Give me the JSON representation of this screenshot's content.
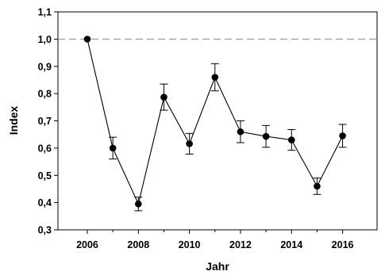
{
  "chart_data": {
    "type": "line",
    "title": "",
    "xlabel": "Jahr",
    "ylabel": "Index",
    "xlim": [
      2004.85,
      2017.35
    ],
    "ylim": [
      0.3,
      1.1
    ],
    "x_ticks": [
      2006,
      2008,
      2010,
      2012,
      2014,
      2016
    ],
    "x_tick_labels": [
      "2006",
      "2008",
      "2010",
      "2012",
      "2014",
      "2016"
    ],
    "y_ticks": [
      0.3,
      0.4,
      0.5,
      0.6,
      0.7,
      0.8,
      0.9,
      1.0,
      1.1
    ],
    "y_tick_labels": [
      "0,3",
      "0,4",
      "0,5",
      "0,6",
      "0,7",
      "0,8",
      "0,9",
      "1,0",
      "1,1"
    ],
    "reference_line": {
      "y": 1.0,
      "style": "dashed",
      "color": "#a0a0a0"
    },
    "grid": false,
    "legend": "none",
    "colors": {
      "line": "#000000",
      "marker": "#000000",
      "error_bar": "#000000"
    },
    "series": [
      {
        "x": [
          2006,
          2007,
          2008,
          2009,
          2010,
          2011,
          2012,
          2013,
          2014,
          2015,
          2016
        ],
        "values": [
          1.0,
          0.6,
          0.395,
          0.787,
          0.616,
          0.86,
          0.66,
          0.643,
          0.63,
          0.46,
          0.645
        ],
        "error": [
          0.0,
          0.04,
          0.025,
          0.048,
          0.038,
          0.05,
          0.04,
          0.04,
          0.038,
          0.03,
          0.042
        ]
      }
    ]
  }
}
